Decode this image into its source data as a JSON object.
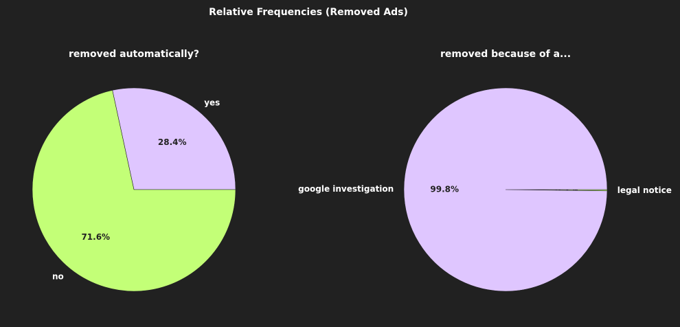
{
  "figure": {
    "title": "Relative Frequencies (Removed Ads)",
    "background": "#212121"
  },
  "chart_data": [
    {
      "type": "pie",
      "title": "removed automatically?",
      "labels": [
        "yes",
        "no"
      ],
      "values": [
        28.4,
        71.6
      ],
      "value_labels": [
        "28.4%",
        "71.6%"
      ],
      "colors": [
        "#dfc6ff",
        "#c3ff77"
      ],
      "start_angle_deg": 0,
      "direction": "counterclockwise"
    },
    {
      "type": "pie",
      "title": "removed because of a...",
      "labels": [
        "legal notice",
        "google investigation"
      ],
      "values": [
        0.2,
        99.8
      ],
      "value_labels": [
        "0.2%",
        "99.8%"
      ],
      "colors": [
        "#c3ff77",
        "#dfc6ff"
      ],
      "start_angle_deg": 0,
      "direction": "clockwise"
    }
  ]
}
